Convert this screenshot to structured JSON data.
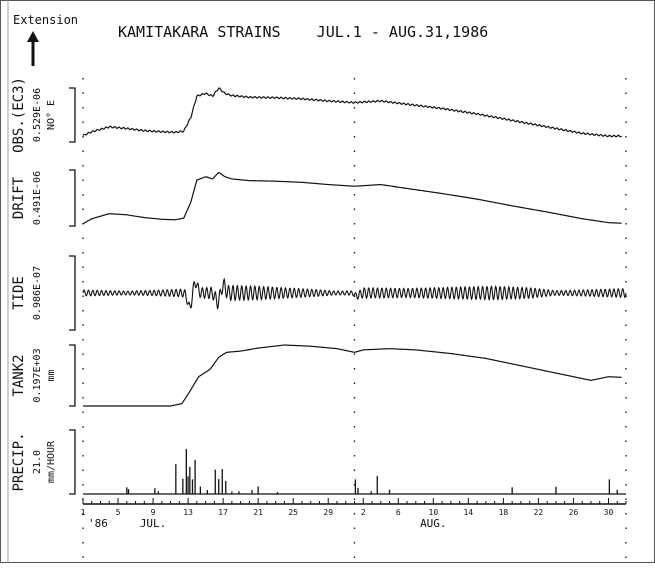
{
  "header": {
    "extension_label": "Extension",
    "title": "KAMITAKARA STRAINS    JUL.1 - AUG.31,1986"
  },
  "chart_data": {
    "type": "line",
    "title": "KAMITAKARA STRAINS    JUL.1 - AUG.31,1986",
    "x_range_days": [
      1,
      63
    ],
    "x_tick_days": [
      1,
      5,
      9,
      13,
      17,
      21,
      25,
      29,
      33,
      37,
      41,
      45,
      49,
      53,
      57,
      61
    ],
    "x_tick_labels": [
      "1",
      "5",
      "9",
      "13",
      "17",
      "21",
      "25",
      "29",
      "2",
      "6",
      "10",
      "14",
      "18",
      "22",
      "26",
      "30"
    ],
    "year_label": "'86",
    "month_labels": [
      {
        "label": "JUL.",
        "day": 9
      },
      {
        "label": "AUG.",
        "day": 41
      }
    ],
    "dotted_gridlines_days": [
      1,
      32,
      63
    ],
    "series": [
      {
        "name": "OBS.(EC3)",
        "side_label": "NO° E",
        "scale": "0.529E-06",
        "x": [
          1,
          2,
          4,
          6,
          8,
          10,
          11.5,
          12.5,
          13.3,
          14,
          15,
          15.8,
          16.5,
          17.2,
          18,
          20,
          23,
          26,
          29,
          32,
          35,
          38,
          42,
          46,
          50,
          54,
          58,
          61,
          62.5
        ],
        "y": [
          0.12,
          0.19,
          0.28,
          0.25,
          0.21,
          0.19,
          0.18,
          0.2,
          0.45,
          0.85,
          0.9,
          0.85,
          1.0,
          0.9,
          0.86,
          0.83,
          0.82,
          0.8,
          0.76,
          0.73,
          0.76,
          0.7,
          0.62,
          0.52,
          0.4,
          0.28,
          0.16,
          0.11,
          0.11
        ],
        "ripple": 0.014
      },
      {
        "name": "DRIFT",
        "scale": "0.491E-06",
        "x": [
          1,
          2,
          4,
          6,
          8,
          10,
          11.5,
          12.5,
          13.3,
          14,
          15,
          15.8,
          16.5,
          17.2,
          18,
          20,
          23,
          26,
          29,
          32,
          35,
          38,
          42,
          46,
          50,
          54,
          58,
          61,
          62.5
        ],
        "y": [
          0.04,
          0.13,
          0.22,
          0.2,
          0.15,
          0.12,
          0.11,
          0.14,
          0.42,
          0.82,
          0.88,
          0.84,
          0.96,
          0.88,
          0.84,
          0.81,
          0.8,
          0.78,
          0.74,
          0.71,
          0.74,
          0.67,
          0.58,
          0.48,
          0.36,
          0.25,
          0.13,
          0.06,
          0.05
        ],
        "ripple": 0
      },
      {
        "name": "TIDE",
        "scale": "0.986E-07",
        "amplitude_x": [
          1,
          6,
          9,
          12,
          16,
          18,
          21,
          27,
          30,
          32,
          33,
          38,
          44,
          48,
          52,
          55,
          58,
          63
        ],
        "amplitude_y": [
          0.08,
          0.05,
          0.07,
          0.1,
          0.16,
          0.2,
          0.18,
          0.1,
          0.05,
          0.06,
          0.14,
          0.12,
          0.16,
          0.18,
          0.14,
          0.06,
          0.08,
          0.12
        ],
        "period_days": 0.5,
        "spikes": [
          {
            "day": 13.2,
            "value": -0.4
          },
          {
            "day": 13.8,
            "value": 0.3
          },
          {
            "day": 16.4,
            "value": -0.26
          },
          {
            "day": 17.0,
            "value": 0.22
          },
          {
            "day": 32.3,
            "value": -0.08
          }
        ]
      },
      {
        "name": "TANK2",
        "side_label": "mm",
        "scale": "0.197E+03",
        "x": [
          1,
          4,
          8,
          11,
          12.3,
          13.2,
          14.2,
          15.5,
          16.5,
          17.4,
          19,
          21,
          24,
          27,
          30,
          32,
          33,
          36,
          39,
          43,
          47,
          51,
          55,
          59,
          61,
          62.5
        ],
        "y": [
          0.0,
          0.0,
          0.0,
          0.0,
          0.04,
          0.24,
          0.48,
          0.6,
          0.8,
          0.88,
          0.9,
          0.95,
          1.0,
          0.98,
          0.94,
          0.88,
          0.92,
          0.94,
          0.92,
          0.86,
          0.78,
          0.66,
          0.54,
          0.42,
          0.48,
          0.47
        ]
      },
      {
        "name": "PRECIP.",
        "side_label": "mm/HOUR",
        "scale": "21.0",
        "type": "bar",
        "x": [
          6.0,
          6.2,
          9.2,
          9.6,
          11.6,
          12.4,
          12.8,
          13.0,
          13.2,
          13.5,
          13.8,
          14.4,
          15.2,
          16.1,
          16.5,
          16.9,
          17.3,
          18.0,
          18.8,
          20.3,
          21.0,
          23.2,
          32.1,
          32.4,
          33.9,
          34.6,
          36.0,
          50.0,
          55.0,
          61.1,
          62.0
        ],
        "y": [
          2.2,
          1.6,
          1.9,
          0.9,
          9.8,
          5.0,
          14.8,
          5.8,
          8.9,
          4.8,
          11.2,
          2.4,
          1.3,
          8.0,
          4.9,
          8.2,
          4.3,
          0.8,
          0.9,
          1.3,
          2.5,
          0.6,
          4.8,
          2.0,
          0.9,
          5.9,
          1.4,
          2.2,
          2.4,
          4.8,
          1.4
        ]
      }
    ]
  }
}
